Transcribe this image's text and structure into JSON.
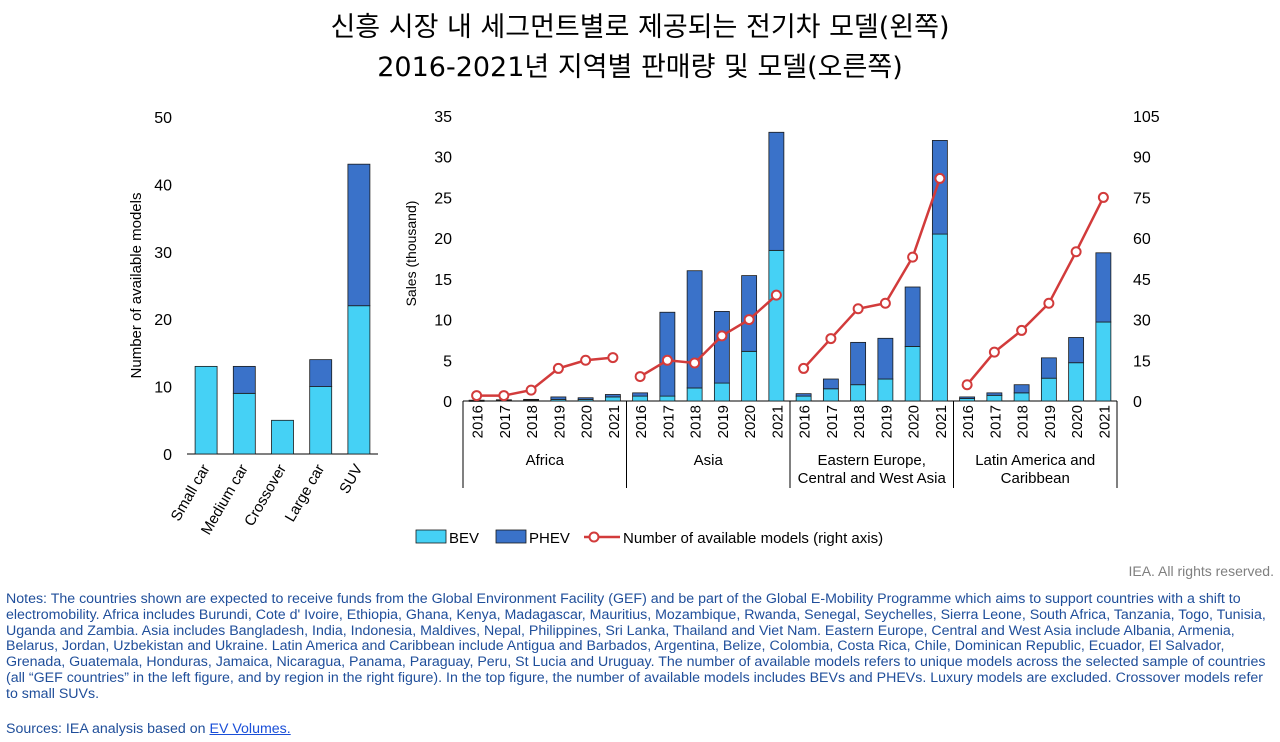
{
  "title": {
    "line1": "신흥 시장 내 세그먼트별로 제공되는 전기차 모델(왼쪽)",
    "line2": "2016-2021년 지역별 판매량 및 모델(오른쪽)"
  },
  "colors": {
    "bev": "#45d1f5",
    "phev": "#3a72c9",
    "models": "#d23b3b"
  },
  "chart_data": [
    {
      "type": "bar",
      "stacked": true,
      "title": "",
      "xlabel": "",
      "ylabel": "Number of available models",
      "ylim": [
        0,
        50
      ],
      "yticks": [
        0,
        10,
        20,
        30,
        40,
        50
      ],
      "categories": [
        "Small car",
        "Medium car",
        "Crossover",
        "Large car",
        "SUV"
      ],
      "series": [
        {
          "name": "BEV",
          "values": [
            13,
            9,
            5,
            10,
            22
          ]
        },
        {
          "name": "PHEV",
          "values": [
            0,
            4,
            0,
            4,
            21
          ]
        }
      ]
    },
    {
      "type": "bar",
      "stacked": true,
      "title": "",
      "ylabel": "Sales (thousand)",
      "ylim": [
        0,
        35
      ],
      "yticks": [
        0,
        5,
        10,
        15,
        20,
        25,
        30,
        35
      ],
      "y2lim": [
        0,
        105
      ],
      "y2ticks": [
        0,
        15,
        30,
        45,
        60,
        75,
        90,
        105
      ],
      "legend_position": "bottom",
      "groups": [
        {
          "label": "Africa",
          "years": [
            "2016",
            "2017",
            "2018",
            "2019",
            "2020",
            "2021"
          ],
          "bev": [
            0.05,
            0.1,
            0.1,
            0.2,
            0.2,
            0.5
          ],
          "phev": [
            0.05,
            0.05,
            0.1,
            0.3,
            0.2,
            0.3
          ],
          "models": [
            2,
            2,
            4,
            12,
            15,
            16
          ]
        },
        {
          "label": "Asia",
          "years": [
            "2016",
            "2017",
            "2018",
            "2019",
            "2020",
            "2021"
          ],
          "bev": [
            0.6,
            0.6,
            1.6,
            2.2,
            6.1,
            18.5
          ],
          "phev": [
            0.4,
            10.3,
            14.4,
            8.8,
            9.3,
            14.5
          ],
          "models": [
            9,
            15,
            14,
            24,
            30,
            39
          ]
        },
        {
          "label": "Eastern Europe,\nCentral and West Asia",
          "years": [
            "2016",
            "2017",
            "2018",
            "2019",
            "2020",
            "2021"
          ],
          "bev": [
            0.6,
            1.5,
            2.0,
            2.7,
            6.7,
            20.5
          ],
          "phev": [
            0.3,
            1.2,
            5.2,
            5.0,
            7.3,
            11.5
          ],
          "models": [
            12,
            23,
            34,
            36,
            53,
            82
          ]
        },
        {
          "label": "Latin America and\nCaribbean",
          "years": [
            "2016",
            "2017",
            "2018",
            "2019",
            "2020",
            "2021"
          ],
          "bev": [
            0.3,
            0.7,
            1.0,
            2.8,
            4.7,
            9.7
          ],
          "phev": [
            0.2,
            0.3,
            1.0,
            2.5,
            3.1,
            8.5
          ],
          "models": [
            6,
            18,
            26,
            36,
            55,
            75
          ]
        }
      ],
      "legend": [
        "BEV",
        "PHEV",
        "Number of available models (right axis)"
      ]
    }
  ],
  "rights": "IEA. All rights reserved.",
  "notes": "Notes: The countries shown are expected to receive funds from the Global Environment Facility (GEF) and be part of the Global E-Mobility Programme which aims to support countries with a shift to electromobility. Africa includes Burundi, Cote d' Ivoire, Ethiopia, Ghana, Kenya, Madagascar, Mauritius, Mozambique, Rwanda, Senegal, Seychelles, Sierra Leone, South Africa, Tanzania, Togo, Tunisia, Uganda and Zambia. Asia includes Bangladesh, India, Indonesia, Maldives, Nepal, Philippines, Sri Lanka, Thailand and Viet Nam. Eastern Europe, Central and West Asia include Albania, Armenia, Belarus, Jordan, Uzbekistan and Ukraine. Latin America and Caribbean include Antigua and Barbados, Argentina, Belize, Colombia, Costa Rica, Chile, Dominican Republic, Ecuador, El Salvador, Grenada, Guatemala, Honduras, Jamaica, Nicaragua, Panama, Paraguay, Peru, St Lucia and Uruguay. The number of available models refers to unique models across the selected sample of countries (all “GEF countries” in the left figure, and by region in the right figure). In the top figure, the number of available models includes BEVs and PHEVs. Luxury models are excluded. Crossover models refer to small SUVs.",
  "sources": {
    "prefix": "Sources: IEA analysis based on ",
    "link": "EV Volumes."
  }
}
